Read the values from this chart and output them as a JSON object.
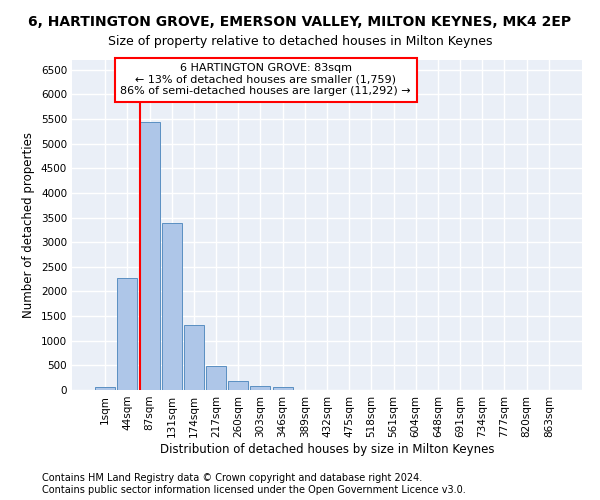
{
  "title": "6, HARTINGTON GROVE, EMERSON VALLEY, MILTON KEYNES, MK4 2EP",
  "subtitle": "Size of property relative to detached houses in Milton Keynes",
  "xlabel": "Distribution of detached houses by size in Milton Keynes",
  "ylabel": "Number of detached properties",
  "footer_line1": "Contains HM Land Registry data © Crown copyright and database right 2024.",
  "footer_line2": "Contains public sector information licensed under the Open Government Licence v3.0.",
  "annotation_title": "6 HARTINGTON GROVE: 83sqm",
  "annotation_line1": "← 13% of detached houses are smaller (1,759)",
  "annotation_line2": "86% of semi-detached houses are larger (11,292) →",
  "bar_labels": [
    "1sqm",
    "44sqm",
    "87sqm",
    "131sqm",
    "174sqm",
    "217sqm",
    "260sqm",
    "303sqm",
    "346sqm",
    "389sqm",
    "432sqm",
    "475sqm",
    "518sqm",
    "561sqm",
    "604sqm",
    "648sqm",
    "691sqm",
    "734sqm",
    "777sqm",
    "820sqm",
    "863sqm"
  ],
  "bar_values": [
    70,
    2270,
    5450,
    3400,
    1310,
    480,
    175,
    90,
    60,
    0,
    0,
    0,
    0,
    0,
    0,
    0,
    0,
    0,
    0,
    0,
    0
  ],
  "bar_color": "#aec6e8",
  "bar_edge_color": "#5a8fc2",
  "vline_color": "red",
  "vline_x_index": 2,
  "annotation_box_color": "red",
  "annotation_box_fill": "white",
  "ylim": [
    0,
    6700
  ],
  "yticks": [
    0,
    500,
    1000,
    1500,
    2000,
    2500,
    3000,
    3500,
    4000,
    4500,
    5000,
    5500,
    6000,
    6500
  ],
  "background_color": "#eaeff7",
  "grid_color": "white",
  "title_fontsize": 10,
  "subtitle_fontsize": 9,
  "axis_label_fontsize": 8.5,
  "tick_fontsize": 7.5,
  "annotation_fontsize": 8,
  "footer_fontsize": 7
}
